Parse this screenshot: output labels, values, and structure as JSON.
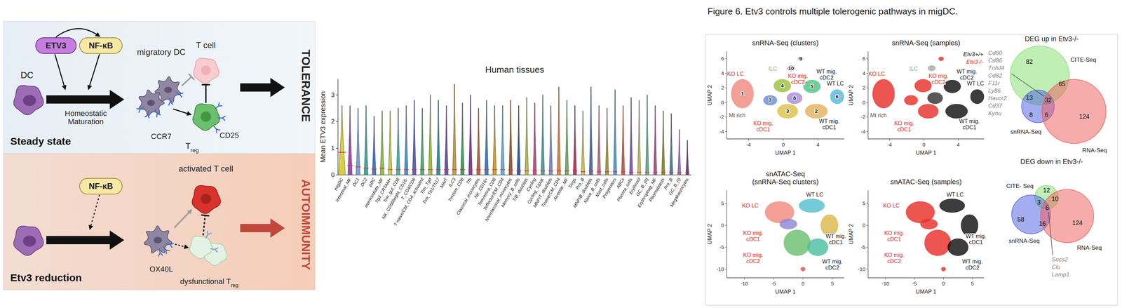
{
  "graphical_abstract": {
    "steady_state": {
      "label": "Steady state",
      "etv3": "ETV3",
      "nfkb": "NF-κB",
      "dc": "DC",
      "migratory_dc": "migratory DC",
      "maturation": "Homeostatic Maturation",
      "ccr7": "CCR7",
      "t_cell": "T cell",
      "cd25": "CD25",
      "treg": {
        "text": "T",
        "sub": "reg"
      },
      "outcome": "TOLERANCE"
    },
    "etv3_reduction": {
      "label": "Etv3 reduction",
      "nfkb": "NF-κB",
      "activated_t_cell": "activated T cell",
      "ox40l": "OX40L",
      "dysfunctional_treg": {
        "text": "dysfunctional T",
        "sub": "reg"
      },
      "outcome": "AUTOIMMUNITY"
    }
  },
  "chart_data": {
    "type": "violin",
    "title": "Human tissues",
    "y_label": "Mean ETV3 expression",
    "categories": [
      "migDC",
      "Intestinal_MF",
      "DC1",
      "DC2",
      "pDC",
      "intermediate_MF",
      "Tgd_CRTAM+",
      "Trm_gut_CD8",
      "NK_CD56bright_CD16-",
      "T_CD4/CD8",
      "T naive/CM_CD4_activated",
      "Trm_Tgd",
      "Trm_Th1/Th17",
      "MAIT",
      "ILC3",
      "Trm/em_CD8",
      "Tfh",
      "Classical_monocytes",
      "NK_CD16+",
      "Tem/emra_CD8",
      "Teffector/EM_CD4",
      "Nonclassical_monocytes",
      "Memory_B_cells",
      "T/B_doublets",
      "Cycling",
      "Cycling_T&NK",
      "MNP/T_doublets",
      "Tnaive/CM_CD4",
      "Alveolar_MF",
      "Tregs",
      "Pro_B",
      "MNP/B_doublets",
      "Naive_B_cells",
      "Mast_cells",
      "Progenitors",
      "ABCs",
      "Plasma_cells",
      "Erythroid",
      "GC_B_(II)",
      "Erythrophag_MF",
      "Plasmablasts",
      "Pre_B",
      "GC_B_(I)",
      "Megakaryocytes"
    ],
    "values": [
      0.85,
      0.35,
      0.3,
      0.25,
      0.22,
      0.25,
      0.2,
      0.2,
      0.2,
      0.2,
      0.2,
      0.2,
      0.2,
      0.2,
      0.2,
      0.2,
      0.18,
      0.2,
      0.2,
      0.2,
      0.2,
      0.18,
      0.15,
      0.15,
      0.15,
      0.15,
      0.15,
      0.15,
      0.15,
      0.15,
      0.12,
      0.15,
      0.12,
      0.12,
      0.12,
      0.12,
      0.1,
      0.1,
      0.1,
      0.1,
      0.1,
      0.1,
      0.08,
      0.08
    ],
    "max": [
      2.6,
      2.6,
      2.5,
      2.6,
      2.2,
      2.4,
      2.4,
      2.5,
      2.6,
      2.8,
      2.5,
      3.0,
      2.8,
      2.6,
      3.4,
      2.7,
      3.0,
      2.5,
      2.8,
      2.6,
      2.6,
      2.8,
      2.6,
      2.9,
      2.7,
      3.0,
      2.6,
      3.3,
      2.8,
      2.6,
      2.4,
      3.3,
      2.6,
      2.5,
      3.2,
      2.6,
      2.9,
      2.8,
      3.0,
      2.6,
      2.4,
      2.3,
      1.7,
      1.3
    ],
    "colors": [
      "#d9cf3f",
      "#9b4fb0",
      "#7a9fd6",
      "#3fa894",
      "#4a78c0",
      "#8cc04a",
      "#c0d04a",
      "#4ab0b0",
      "#5090d0",
      "#6060c0",
      "#50b070",
      "#a0c040",
      "#3090a0",
      "#7050b0",
      "#c0a040",
      "#40a060",
      "#8040a0",
      "#c06040",
      "#4080c0",
      "#d0a030",
      "#60b0d0",
      "#a06030",
      "#3060a0",
      "#b0c050",
      "#c05080",
      "#50a0a0",
      "#8090d0",
      "#e08040",
      "#6fb36f",
      "#b04060",
      "#d0c060",
      "#5070b0",
      "#c07080",
      "#a0a040",
      "#4f9fcf",
      "#d06050",
      "#7f5fbf",
      "#c0c060",
      "#60b090",
      "#b05090",
      "#909030",
      "#5080a0",
      "#a070c0",
      "#704080"
    ],
    "ylim": [
      0,
      3.6
    ],
    "yticks": [
      0,
      1,
      2,
      3
    ],
    "grid": false
  },
  "figure": {
    "title": "Figure 6. Etv3 controls multiple tolerogenic pathways in migDC.",
    "panels": [
      {
        "title": "snRNA-Seq (clusters)",
        "x_label": "UMAP 1",
        "y_label": "UMAP 2",
        "xlim": [
          -6.5,
          7
        ],
        "ylim": [
          -5,
          7
        ],
        "xticks": [
          -4,
          0,
          4
        ],
        "yticks": [
          -4,
          -2,
          0,
          2,
          4,
          6
        ],
        "clusters": [
          {
            "id": "1",
            "x": -4.7,
            "y": 1.2,
            "rx": 1.3,
            "ry": 2.0,
            "color": "#f08a7e"
          },
          {
            "id": "2",
            "x": 3.8,
            "y": -1.2,
            "rx": 1.3,
            "ry": 1.0,
            "color": "#e3b25c"
          },
          {
            "id": "3",
            "x": 0.5,
            "y": -1.2,
            "rx": 1.2,
            "ry": 1.0,
            "color": "#dcc24a"
          },
          {
            "id": "4",
            "x": -0.1,
            "y": 2.3,
            "rx": 1.0,
            "ry": 0.9,
            "color": "#9cc23c"
          },
          {
            "id": "5",
            "x": 3.3,
            "y": 2.2,
            "rx": 1.0,
            "ry": 0.9,
            "color": "#4fc485"
          },
          {
            "id": "6",
            "x": 6.2,
            "y": 0.8,
            "rx": 0.8,
            "ry": 1.0,
            "color": "#56b8d8"
          },
          {
            "id": "7",
            "x": -1.5,
            "y": 0.3,
            "rx": 0.8,
            "ry": 0.7,
            "color": "#6d8fd6"
          },
          {
            "id": "8",
            "x": 1.3,
            "y": 0.6,
            "rx": 0.9,
            "ry": 0.8,
            "color": "#a98fd2"
          },
          {
            "id": "9",
            "x": 2.0,
            "y": 6.0,
            "rx": 0.3,
            "ry": 0.3,
            "color": "#d86fd0"
          },
          {
            "id": "10",
            "x": 0.9,
            "y": 4.7,
            "rx": 0.45,
            "ry": 0.4,
            "color": "#b07ad6"
          }
        ],
        "annotations": [
          {
            "text": "KO LC",
            "x": -5.5,
            "y": 3.9,
            "color": "#e0302a"
          },
          {
            "text": "KO mig. cDC2",
            "x": 1.7,
            "y": 3.2,
            "color": "#e0302a"
          },
          {
            "text": "WT mig. cDC2",
            "x": 5.0,
            "y": 3.8,
            "color": "#222222"
          },
          {
            "text": "WT LC",
            "x": 6.0,
            "y": 2.6,
            "color": "#222222"
          },
          {
            "text": "WT mig. cDC1",
            "x": 5.3,
            "y": -3.0,
            "color": "#222222"
          },
          {
            "text": "KO mig. cDC1",
            "x": -2.3,
            "y": -3.3,
            "color": "#e0302a"
          },
          {
            "text": "Mt rich",
            "x": -5.3,
            "y": -1.8,
            "color": "#555555"
          },
          {
            "text": "ILC",
            "x": -1.2,
            "y": 4.6,
            "color": "#999999"
          }
        ]
      },
      {
        "title": "snRNA-Seq (samples)",
        "x_label": "UMAP 1",
        "y_label": "UMAP 2",
        "xlim": [
          -6.5,
          7
        ],
        "ylim": [
          -5,
          7
        ],
        "xticks": [
          -4,
          0,
          4
        ],
        "yticks": [
          -4,
          -2,
          0,
          2,
          4,
          6
        ],
        "clusters": [
          {
            "x": -4.7,
            "y": 1.2,
            "rx": 1.3,
            "ry": 2.0,
            "color": "#e8302a"
          },
          {
            "x": 3.8,
            "y": -1.2,
            "rx": 1.3,
            "ry": 1.0,
            "color": "#111111"
          },
          {
            "x": 0.5,
            "y": -1.2,
            "rx": 1.2,
            "ry": 1.0,
            "color": "#e8302a"
          },
          {
            "x": -0.1,
            "y": 2.3,
            "rx": 1.0,
            "ry": 0.9,
            "color": "#e8302a"
          },
          {
            "x": 3.3,
            "y": 2.2,
            "rx": 1.0,
            "ry": 0.9,
            "color": "#111111"
          },
          {
            "x": 6.2,
            "y": 0.8,
            "rx": 0.8,
            "ry": 1.0,
            "color": "#111111"
          },
          {
            "x": -1.5,
            "y": 0.3,
            "rx": 0.8,
            "ry": 0.7,
            "color": "#e8302a"
          },
          {
            "x": 1.3,
            "y": 0.6,
            "rx": 0.9,
            "ry": 0.8,
            "color": "#333333"
          },
          {
            "x": 2.0,
            "y": 6.0,
            "rx": 0.3,
            "ry": 0.3,
            "color": "#e8302a"
          },
          {
            "x": 0.9,
            "y": 4.7,
            "rx": 0.45,
            "ry": 0.4,
            "color": "#aaaaaa"
          }
        ],
        "annotations": [
          {
            "text": "KO LC",
            "x": -5.5,
            "y": 3.9,
            "color": "#e0302a"
          },
          {
            "text": "KO mig. cDC2",
            "x": 1.7,
            "y": 3.2,
            "color": "#e0302a"
          },
          {
            "text": "WT mig. cDC2",
            "x": 5.0,
            "y": 3.8,
            "color": "#222222"
          },
          {
            "text": "WT LC",
            "x": 6.0,
            "y": 2.6,
            "color": "#222222"
          },
          {
            "text": "WT mig. cDC1",
            "x": 5.3,
            "y": -3.0,
            "color": "#222222"
          },
          {
            "text": "KO mig. cDC1",
            "x": -2.3,
            "y": -3.3,
            "color": "#e0302a"
          },
          {
            "text": "Mt rich",
            "x": -5.3,
            "y": -1.8,
            "color": "#555555"
          },
          {
            "text": "ILC",
            "x": -1.2,
            "y": 4.6,
            "color": "#999999"
          }
        ],
        "legend": "top-right",
        "legend_entries": [
          {
            "name": "Etv3+/+",
            "color": "#111111"
          },
          {
            "name": "Etv3-/-",
            "color": "#e8302a"
          }
        ]
      },
      {
        "title": "snATAC-Seq (snRNA-Seq clusters)",
        "x_label": "UMAP 1",
        "y_label": "UMAP 2",
        "xlim": [
          -13,
          7
        ],
        "ylim": [
          -12,
          8
        ],
        "xticks": [
          -10,
          -5,
          0,
          5
        ],
        "yticks": [
          -10,
          -5,
          0,
          5
        ],
        "clusters": [
          {
            "x": -4,
            "y": 3,
            "rx": 2.5,
            "ry": 2.5,
            "color": "#f08a7e"
          },
          {
            "x": -2.5,
            "y": 0.3,
            "rx": 1.5,
            "ry": 1.2,
            "color": "#8f86d6"
          },
          {
            "x": -1,
            "y": -4,
            "rx": 2.3,
            "ry": 3,
            "color": "#6cc070"
          },
          {
            "x": 1.5,
            "y": 4.5,
            "rx": 2.2,
            "ry": 1.6,
            "color": "#56c0d0"
          },
          {
            "x": 4.5,
            "y": 0,
            "rx": 1.5,
            "ry": 2.5,
            "color": "#d9b84a"
          },
          {
            "x": 2.5,
            "y": -5,
            "rx": 1.8,
            "ry": 2,
            "color": "#4cc0a0"
          },
          {
            "x": 0,
            "y": -10,
            "rx": 0.4,
            "ry": 0.5,
            "color": "#e05050"
          }
        ],
        "annotations": [
          {
            "text": "KO LC",
            "x": -9,
            "y": 4.5,
            "color": "#e0302a"
          },
          {
            "text": "WT LC",
            "x": 2,
            "y": 7.0,
            "color": "#222222"
          },
          {
            "text": "WT mig. cDC1",
            "x": 5.6,
            "y": -3.2,
            "color": "#222222"
          },
          {
            "text": "WT mig. cDC2",
            "x": 5,
            "y": -9,
            "color": "#222222"
          },
          {
            "text": "KO mig. cDC1",
            "x": -8.5,
            "y": -2.5,
            "color": "#e0302a"
          },
          {
            "text": "KO mig. cDC2",
            "x": -8.5,
            "y": -7.5,
            "color": "#e0302a"
          }
        ]
      },
      {
        "title": "snATAC-Seq (samples)",
        "x_label": "UMAP 1",
        "y_label": "UMAP 2",
        "xlim": [
          -13,
          7
        ],
        "ylim": [
          -12,
          8
        ],
        "xticks": [
          -10,
          -5,
          0,
          5
        ],
        "yticks": [
          -10,
          -5,
          0,
          5
        ],
        "clusters": [
          {
            "x": -4,
            "y": 3,
            "rx": 2.5,
            "ry": 2.5,
            "color": "#e8302a"
          },
          {
            "x": -2.5,
            "y": 0.3,
            "rx": 1.5,
            "ry": 1.2,
            "color": "#e8302a"
          },
          {
            "x": -1,
            "y": -4,
            "rx": 2.3,
            "ry": 3,
            "color": "#e8302a"
          },
          {
            "x": 1.5,
            "y": 4.5,
            "rx": 2.2,
            "ry": 1.6,
            "color": "#111111"
          },
          {
            "x": 4.5,
            "y": 0,
            "rx": 1.5,
            "ry": 2.5,
            "color": "#111111"
          },
          {
            "x": 2.5,
            "y": -5,
            "rx": 1.8,
            "ry": 2,
            "color": "#111111"
          },
          {
            "x": 0,
            "y": -10,
            "rx": 0.4,
            "ry": 0.5,
            "color": "#e8302a"
          }
        ],
        "annotations": [
          {
            "text": "KO LC",
            "x": -9,
            "y": 4.5,
            "color": "#e0302a"
          },
          {
            "text": "WT LC",
            "x": 2,
            "y": 7.0,
            "color": "#222222"
          },
          {
            "text": "WT mig. cDC1",
            "x": 5.6,
            "y": -3.2,
            "color": "#222222"
          },
          {
            "text": "WT mig. cDC2",
            "x": 5,
            "y": -9,
            "color": "#222222"
          },
          {
            "text": "KO mig. cDC1",
            "x": -8.5,
            "y": -2.5,
            "color": "#e0302a"
          },
          {
            "text": "KO mig. cDC2",
            "x": -8.5,
            "y": -7.5,
            "color": "#e0302a"
          }
        ]
      }
    ],
    "venns": [
      {
        "title": "DEG up in Etv3-/-",
        "sets": [
          {
            "name": "CITE-Seq",
            "color": "#7fe06a"
          },
          {
            "name": "snRNA-Seq",
            "color": "#4a5be0"
          },
          {
            "name": "RNA-Seq",
            "color": "#f05a5a"
          }
        ],
        "regions": [
          {
            "sets": [
              0
            ],
            "value": 82
          },
          {
            "sets": [
              0,
              2
            ],
            "value": 65
          },
          {
            "sets": [
              2
            ],
            "value": 124
          },
          {
            "sets": [
              0,
              1,
              2
            ],
            "value": 32
          },
          {
            "sets": [
              0,
              1
            ],
            "value": 13
          },
          {
            "sets": [
              1
            ],
            "value": 8
          },
          {
            "sets": [
              1,
              2
            ],
            "value": 6
          }
        ],
        "genes": [
          "Cd80",
          "Cd86",
          "Tnfsf4",
          "Cd82",
          "F11r",
          "Ly86",
          "Havcr2",
          "Cd37",
          "Kynu"
        ]
      },
      {
        "title": "DEG down in Etv3-/-",
        "sets": [
          {
            "name": "CITE- Seq",
            "color": "#7fe06a"
          },
          {
            "name": "snRNA-Seq",
            "color": "#4a5be0"
          },
          {
            "name": "RNA-Seq",
            "color": "#f05a5a"
          }
        ],
        "regions": [
          {
            "sets": [
              0
            ],
            "value": 12
          },
          {
            "sets": [
              0,
              2
            ],
            "value": 10
          },
          {
            "sets": [
              0,
              1
            ],
            "value": 3
          },
          {
            "sets": [
              0,
              1,
              2
            ],
            "value": 6
          },
          {
            "sets": [
              1
            ],
            "value": 58
          },
          {
            "sets": [
              1,
              2
            ],
            "value": 16
          },
          {
            "sets": [
              2
            ],
            "value": 124
          }
        ],
        "genes": [
          "Socs2",
          "Clu",
          "Lamp1"
        ]
      }
    ]
  }
}
